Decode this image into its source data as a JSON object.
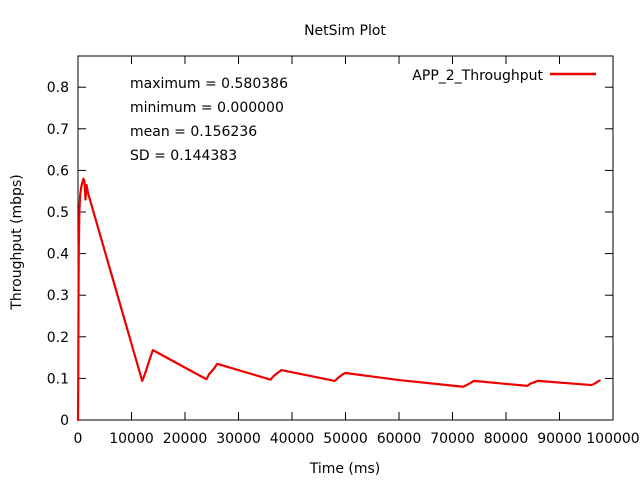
{
  "chart_data": {
    "type": "line",
    "title": "NetSim Plot",
    "xlabel": "Time (ms)",
    "ylabel": "Throughput (mbps)",
    "xlim": [
      0,
      100000
    ],
    "ylim": [
      0,
      0.875
    ],
    "x_ticks": [
      0,
      10000,
      20000,
      30000,
      40000,
      50000,
      60000,
      70000,
      80000,
      90000,
      100000
    ],
    "y_ticks": [
      0,
      0.1,
      0.2,
      0.3,
      0.4,
      0.5,
      0.6,
      0.7,
      0.8
    ],
    "x_tick_labels": [
      "0",
      "10000",
      "20000",
      "30000",
      "40000",
      "50000",
      "60000",
      "70000",
      "80000",
      "90000",
      "100000"
    ],
    "y_tick_labels": [
      "0",
      "0.1",
      "0.2",
      "0.3",
      "0.4",
      "0.5",
      "0.6",
      "0.7",
      "0.8"
    ],
    "grid": false,
    "legend_position": "top-right",
    "stats": [
      "maximum = 0.580386",
      "minimum = 0.000000",
      "mean = 0.156236",
      "SD = 0.144383"
    ],
    "series": [
      {
        "name": "APP_2_Throughput",
        "color": "#ee0000",
        "x": [
          0,
          50,
          100,
          150,
          250,
          400,
          600,
          800,
          1000,
          1200,
          1400,
          1600,
          1800,
          2000,
          12000,
          12500,
          13500,
          14000,
          24000,
          24500,
          25500,
          26000,
          36000,
          36500,
          37500,
          38000,
          48000,
          48500,
          49500,
          50000,
          60000,
          72000,
          72500,
          73500,
          74000,
          84000,
          84500,
          85500,
          86000,
          96000,
          96500,
          97500
        ],
        "y": [
          0,
          0.1,
          0.3,
          0.41,
          0.5,
          0.54,
          0.56,
          0.57,
          0.58,
          0.575,
          0.53,
          0.565,
          0.55,
          0.54,
          0.094,
          0.11,
          0.15,
          0.168,
          0.098,
          0.11,
          0.125,
          0.135,
          0.097,
          0.105,
          0.115,
          0.12,
          0.094,
          0.1,
          0.11,
          0.113,
          0.096,
          0.08,
          0.083,
          0.09,
          0.094,
          0.082,
          0.087,
          0.092,
          0.094,
          0.084,
          0.087,
          0.095
        ]
      }
    ]
  }
}
